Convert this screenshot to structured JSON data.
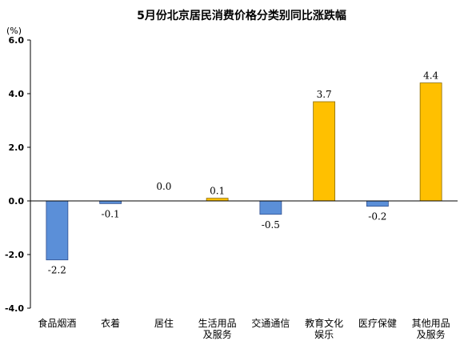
{
  "chart_data": {
    "type": "bar",
    "title": "5月份北京居民消费价格分类别同比涨跌幅",
    "ylabel": "(%)",
    "xlabel": "",
    "ylim": [
      -4.0,
      6.0
    ],
    "yticks": [
      "6.0",
      "4.0",
      "2.0",
      "0.0",
      "-2.0",
      "-4.0"
    ],
    "ytick_values": [
      6,
      4,
      2,
      0,
      -2,
      -4
    ],
    "categories": [
      [
        "食品烟酒"
      ],
      [
        "衣着"
      ],
      [
        "居住"
      ],
      [
        "生活用品",
        "及服务"
      ],
      [
        "交通通信"
      ],
      [
        "教育文化",
        "娱乐"
      ],
      [
        "医疗保健"
      ],
      [
        "其他用品",
        "及服务"
      ]
    ],
    "values": [
      -2.2,
      -0.1,
      0.0,
      0.1,
      -0.5,
      3.7,
      -0.2,
      4.4
    ],
    "data_labels": [
      "-2.2",
      "-0.1",
      "0.0",
      "0.1",
      "-0.5",
      "3.7",
      "-0.2",
      "4.4"
    ],
    "colors": {
      "positive": "#FFC000",
      "negative": "#5B8FD8",
      "positive_stroke": "#8A6A00",
      "negative_stroke": "#2F4F8F"
    },
    "grid": false,
    "legend": "none"
  }
}
